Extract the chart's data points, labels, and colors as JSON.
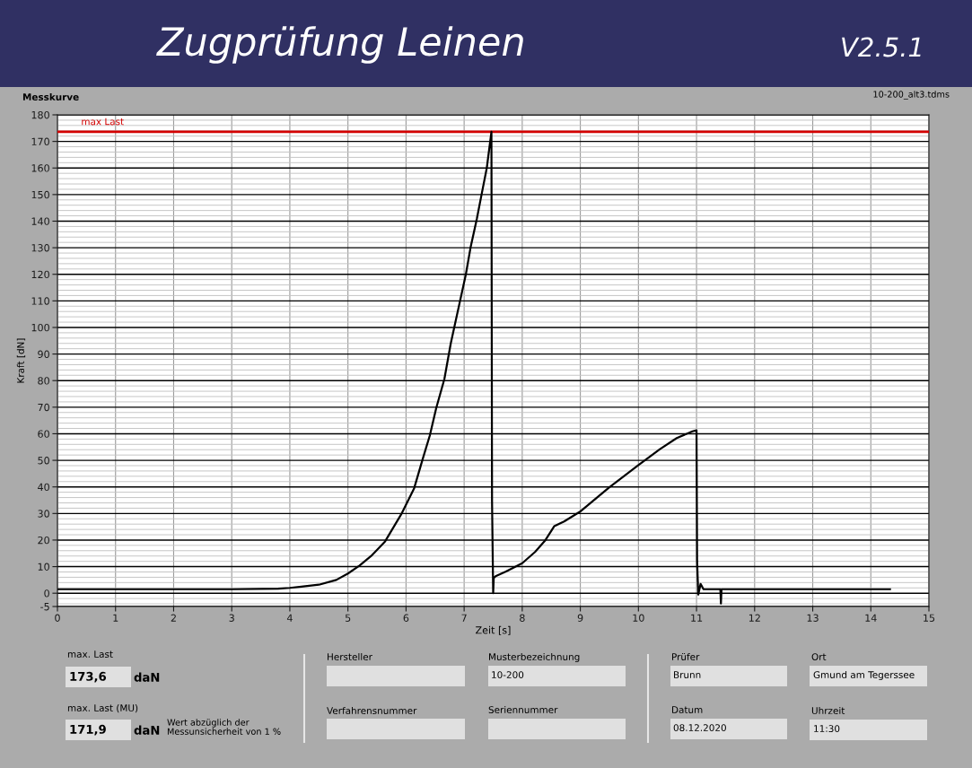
{
  "chart_data": {
    "type": "line",
    "title": "Zugprüfung Leinen",
    "subtitle": "Messkurve",
    "xlabel": "Zeit [s]",
    "ylabel": "Kraft [dN]",
    "x": [
      0,
      1,
      2,
      3,
      3.8,
      4.0,
      4.2,
      4.5,
      4.8,
      5.0,
      5.2,
      5.4,
      5.64,
      5.92,
      6.14,
      6.28,
      6.41,
      6.52,
      6.66,
      6.77,
      6.86,
      7.03,
      7.11,
      7.22,
      7.3,
      7.39,
      7.47,
      7.48,
      7.5,
      7.51,
      7.55,
      7.72,
      8.0,
      8.22,
      8.39,
      8.55,
      8.72,
      8.99,
      9.49,
      10.0,
      10.37,
      10.66,
      10.93,
      11.0,
      11.01,
      11.03,
      11.07,
      11.12,
      11.41,
      11.42,
      11.43,
      12,
      13,
      14,
      14.33
    ],
    "series": [
      {
        "color": "#000000",
        "values": [
          1.5,
          1.5,
          1.5,
          1.5,
          1.7,
          2,
          2.5,
          3.2,
          5,
          7.4,
          10.4,
          14,
          19.5,
          29.8,
          39.5,
          50,
          59.4,
          69.7,
          80.6,
          94,
          103,
          120,
          130,
          141,
          150,
          160,
          173.6,
          35,
          0,
          5.8,
          6.5,
          8.2,
          11.3,
          15.5,
          19.7,
          25.2,
          27,
          30.6,
          39.7,
          48.2,
          54.2,
          58.4,
          60.9,
          61.3,
          12,
          -0.5,
          3.5,
          1.5,
          1.5,
          -3.9,
          1.5,
          1.5,
          1.5,
          1.5,
          1.5
        ]
      }
    ],
    "xlim": [
      0,
      15
    ],
    "xticks": [
      0,
      1,
      2,
      3,
      4,
      5,
      6,
      7,
      8,
      9,
      10,
      11,
      12,
      13,
      14,
      15
    ],
    "ylim": [
      -5,
      180
    ],
    "yticks": [
      -5,
      0,
      10,
      20,
      30,
      40,
      50,
      60,
      70,
      80,
      90,
      100,
      110,
      120,
      130,
      140,
      150,
      160,
      170,
      180
    ],
    "grid": true,
    "ref_lines": [
      {
        "axis": "y",
        "value": 173.6,
        "label": "max Last",
        "color": "#d40000"
      }
    ],
    "annotations": [
      "V2.5.1",
      "10-200_alt3.tdms",
      "max. Last",
      "173,6",
      "daN",
      "max. Last (MU)",
      "171,9",
      "daN",
      "Wert abzüglich der\nMessunsicherheit von 1 %",
      "Hersteller",
      "Verfahrensnummer",
      "Musterbezeichnung",
      "10-200",
      "Seriennummer",
      "Prüfer",
      "Brunn",
      "Datum",
      "08.12.2020",
      "Ort",
      "Gmund am Tegerssee",
      "Uhrzeit",
      "11:30"
    ]
  }
}
